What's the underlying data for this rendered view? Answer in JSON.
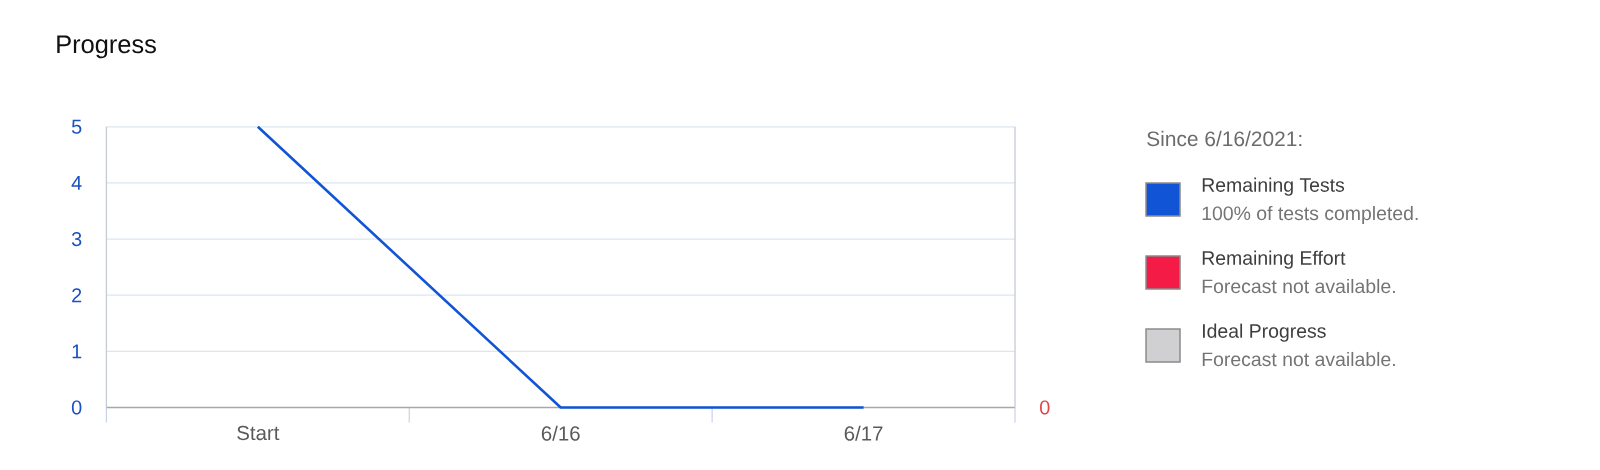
{
  "chart_data": {
    "type": "line",
    "title": "Progress",
    "legend_title": "Since 6/16/2021:",
    "categories": [
      "Start",
      "6/16",
      "6/17"
    ],
    "series": [
      {
        "name": "Remaining Tests",
        "color": "#1155d6",
        "values": [
          5,
          0,
          0
        ]
      },
      {
        "name": "Remaining Effort",
        "color": "#f41c47",
        "values": [
          null,
          null,
          null
        ]
      },
      {
        "name": "Ideal Progress",
        "color": "#d0cfd2",
        "values": [
          null,
          null,
          null
        ]
      }
    ],
    "ylim": [
      0,
      5
    ],
    "yticks": [
      0,
      1,
      2,
      3,
      4,
      5
    ],
    "grid": "y",
    "legend": "right",
    "annotations": [
      "100% of tests completed.",
      "Forecast not available.",
      "Forecast not available.",
      "0"
    ]
  }
}
